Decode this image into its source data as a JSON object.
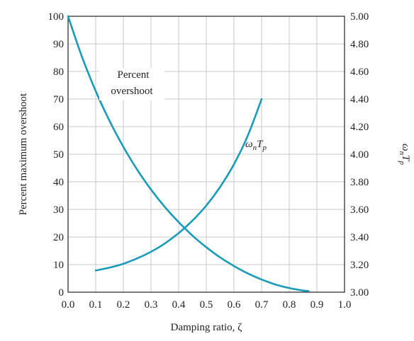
{
  "chart_data": {
    "type": "line",
    "xlabel": "Damping ratio, ζ",
    "ylabel": "Percent maximum overshoot",
    "y2label_base": "ω",
    "y2label_sub1": "n",
    "y2label_T": "T",
    "y2label_sub2": "p",
    "xlim": [
      0.0,
      1.0
    ],
    "ylim": [
      0,
      100
    ],
    "y2lim": [
      3.0,
      5.0
    ],
    "xticks": [
      "0.0",
      "0.1",
      "0.2",
      "0.3",
      "0.4",
      "0.5",
      "0.6",
      "0.7",
      "0.8",
      "0.9",
      "1.0"
    ],
    "yticks": [
      "0",
      "10",
      "20",
      "30",
      "40",
      "50",
      "60",
      "70",
      "80",
      "90",
      "100"
    ],
    "y2ticks": [
      "3.00",
      "3.20",
      "3.40",
      "3.60",
      "3.80",
      "4.00",
      "4.20",
      "4.40",
      "4.60",
      "4.80",
      "5.00"
    ],
    "grid": true,
    "color": "#1a9bb8",
    "series": [
      {
        "name": "Percent overshoot",
        "label_line1": "Percent",
        "label_line2": "overshoot",
        "axis": "left",
        "x": [
          0.0,
          0.05,
          0.1,
          0.15,
          0.2,
          0.25,
          0.3,
          0.35,
          0.4,
          0.45,
          0.5,
          0.55,
          0.6,
          0.65,
          0.7,
          0.75,
          0.8,
          0.85,
          0.87
        ],
        "y": [
          100,
          85.4,
          72.9,
          62.1,
          52.7,
          44.4,
          37.2,
          30.9,
          25.4,
          20.5,
          16.3,
          12.6,
          9.5,
          6.8,
          4.6,
          2.8,
          1.5,
          0.6,
          0.4
        ]
      },
      {
        "name": "ωnTp",
        "label_base": "ω",
        "label_sub1": "n",
        "label_T": "T",
        "label_sub2": "p",
        "axis": "right",
        "x": [
          0.1,
          0.15,
          0.2,
          0.25,
          0.3,
          0.35,
          0.4,
          0.45,
          0.5,
          0.55,
          0.6,
          0.65,
          0.7
        ],
        "y": [
          3.157,
          3.178,
          3.206,
          3.245,
          3.293,
          3.353,
          3.428,
          3.519,
          3.628,
          3.763,
          3.927,
          4.134,
          4.399
        ]
      }
    ]
  }
}
